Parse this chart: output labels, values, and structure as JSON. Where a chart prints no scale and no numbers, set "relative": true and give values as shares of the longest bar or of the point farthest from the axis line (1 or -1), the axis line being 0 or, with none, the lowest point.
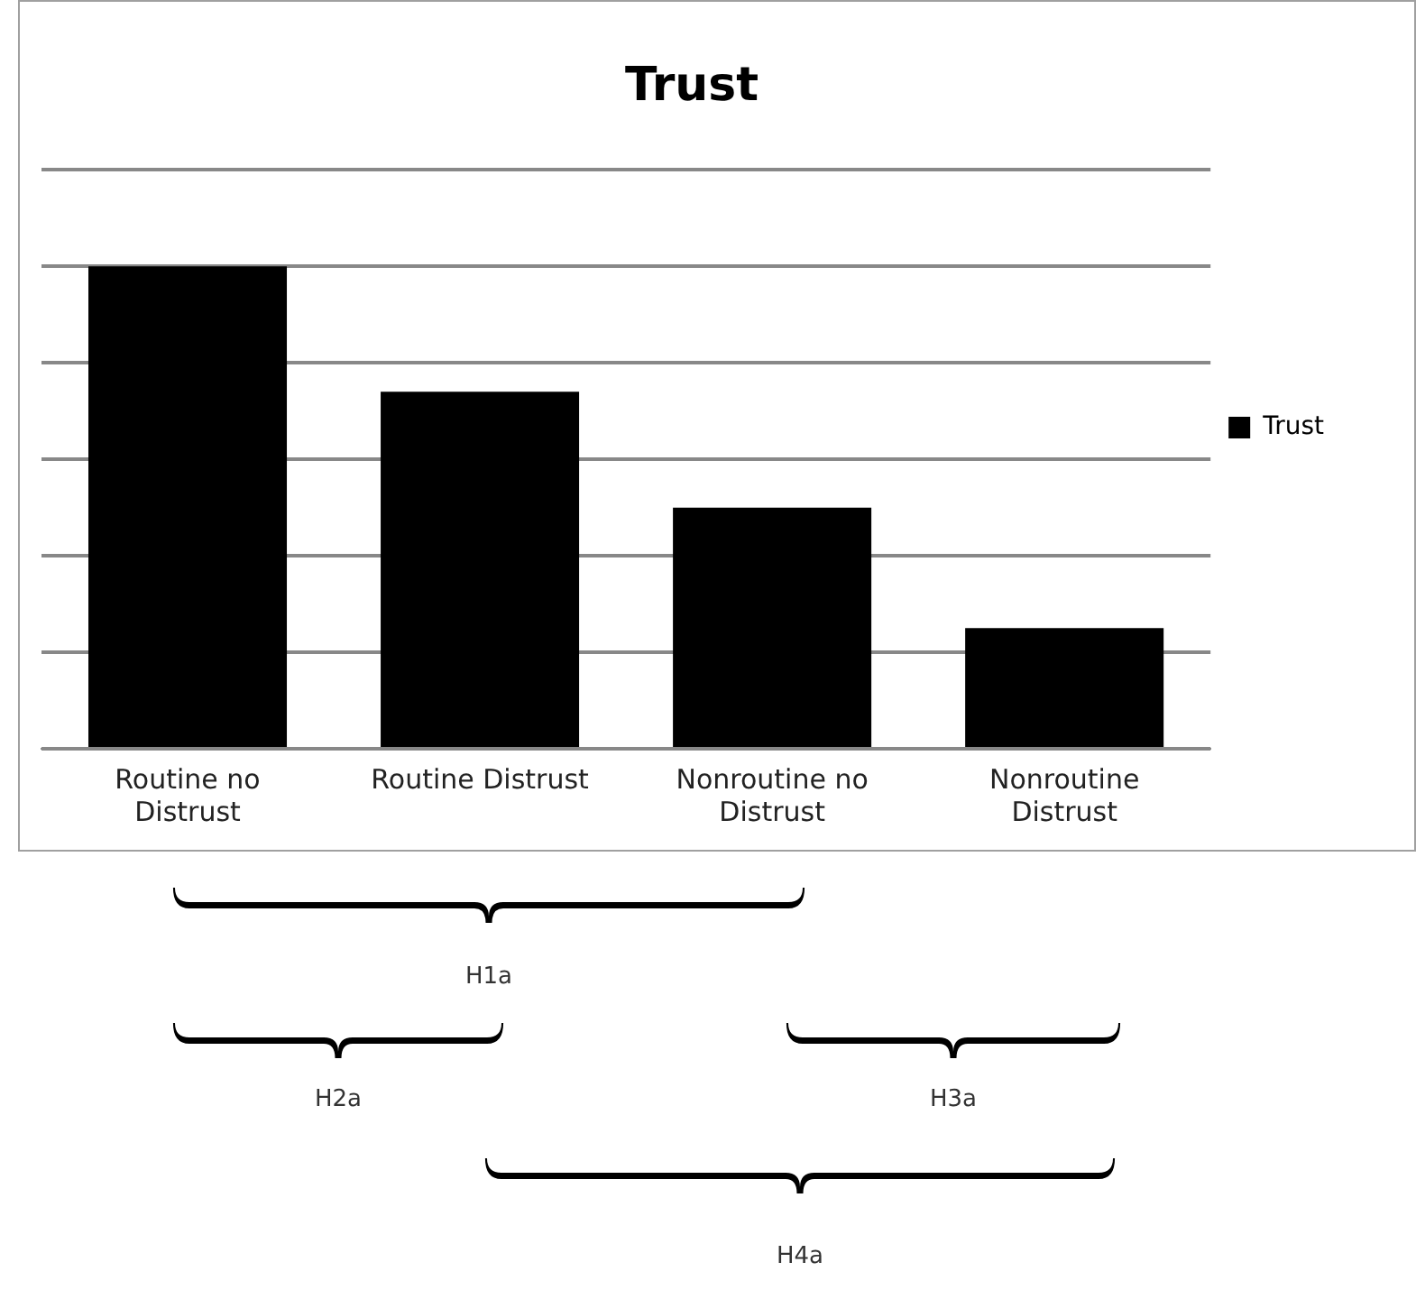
{
  "chart_data": {
    "type": "bar",
    "title": "Trust",
    "categories": [
      "Routine no Distrust",
      "Routine Distrust",
      "Nonroutine no Distrust",
      "Nonroutine Distrust"
    ],
    "series": [
      {
        "name": "Trust",
        "color": "#000000",
        "values": [
          1,
          0.74,
          0.5,
          0.25
        ]
      }
    ],
    "relative": true,
    "grid": "y",
    "legend": "right",
    "annotations": [
      "H1a",
      "H2a",
      "H3a",
      "H4a"
    ]
  }
}
